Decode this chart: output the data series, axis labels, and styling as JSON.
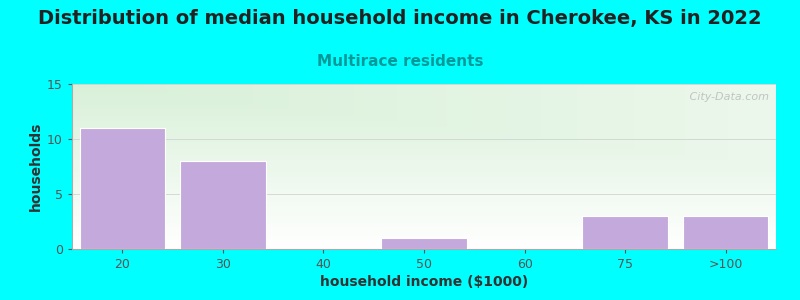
{
  "title": "Distribution of median household income in Cherokee, KS in 2022",
  "subtitle": "Multirace residents",
  "xlabel": "household income ($1000)",
  "ylabel": "households",
  "categories": [
    "20",
    "30",
    "40",
    "50",
    "60",
    "75",
    ">100"
  ],
  "values": [
    11,
    8,
    0,
    1,
    0,
    3,
    3
  ],
  "bar_color": "#C4AADC",
  "bar_edge_color": "#ffffff",
  "background_color": "#00FFFF",
  "plot_bg_top_left": "#d8f0d8",
  "plot_bg_right": "#f0f8f0",
  "plot_bg_bottom": "#ffffff",
  "ylim": [
    0,
    15
  ],
  "yticks": [
    0,
    5,
    10,
    15
  ],
  "title_fontsize": 14,
  "subtitle_fontsize": 11,
  "subtitle_color": "#009999",
  "axis_label_fontsize": 10,
  "tick_fontsize": 9,
  "watermark": " City-Data.com",
  "bar_width": 0.85,
  "title_color": "#222222"
}
